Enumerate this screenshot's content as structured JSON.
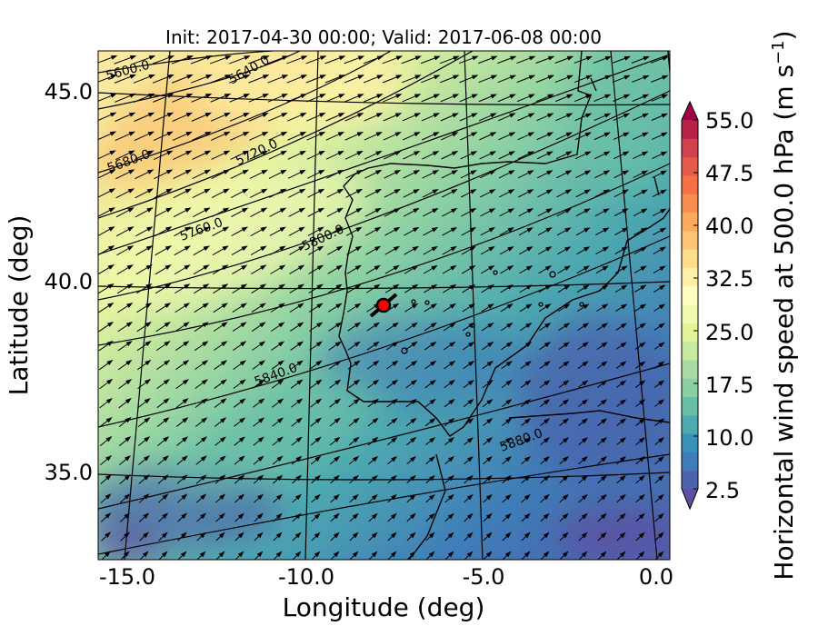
{
  "chart_data": {
    "type": "heatmap",
    "title": "Init: 2017-04-30 00:00; Valid: 2017-06-08 00:00",
    "xlabel": "Longitude (deg)",
    "ylabel": "Latitude (deg)",
    "xlim": [
      -15.8,
      0.2
    ],
    "ylim": [
      32.8,
      46.2
    ],
    "xticks": [
      "-15.0",
      "-10.0",
      "-5.0",
      "0.0"
    ],
    "yticks": [
      "45.0",
      "40.0",
      "35.0"
    ],
    "colorbar": {
      "label": "Horizontal wind speed at 500.0 hPa (m s",
      "label_sup": "−1",
      "label_end": ")",
      "ticks": [
        "55.0",
        "47.5",
        "40.0",
        "32.5",
        "25.0",
        "17.5",
        "10.0",
        "2.5"
      ],
      "range": [
        2.5,
        55.0
      ],
      "step": 2.5,
      "extend": "both",
      "colormap": "Spectral_r",
      "colors": [
        "#5e4fa2",
        "#4a64ad",
        "#3f7db8",
        "#3793b9",
        "#4eaab0",
        "#68bfa6",
        "#8ad0a4",
        "#a9dca4",
        "#c8e9a0",
        "#e2f39a",
        "#f2f9b1",
        "#fefebe",
        "#fef0a6",
        "#fedd8b",
        "#fdc574",
        "#fdaa5e",
        "#f98e52",
        "#f47146",
        "#e45a4b",
        "#d1434c",
        "#b82148",
        "#9e0142"
      ]
    },
    "contours": {
      "field": "geopotential height",
      "labels": [
        "5600.0",
        "5640.0",
        "5680.0",
        "5720.0",
        "5760.0",
        "5800.0",
        "5840.0",
        "5880.0"
      ]
    },
    "marker": {
      "lon": -7.7,
      "lat": 39.4,
      "color": "#ff0000"
    },
    "vectors": "wind at 500.0 hPa"
  }
}
